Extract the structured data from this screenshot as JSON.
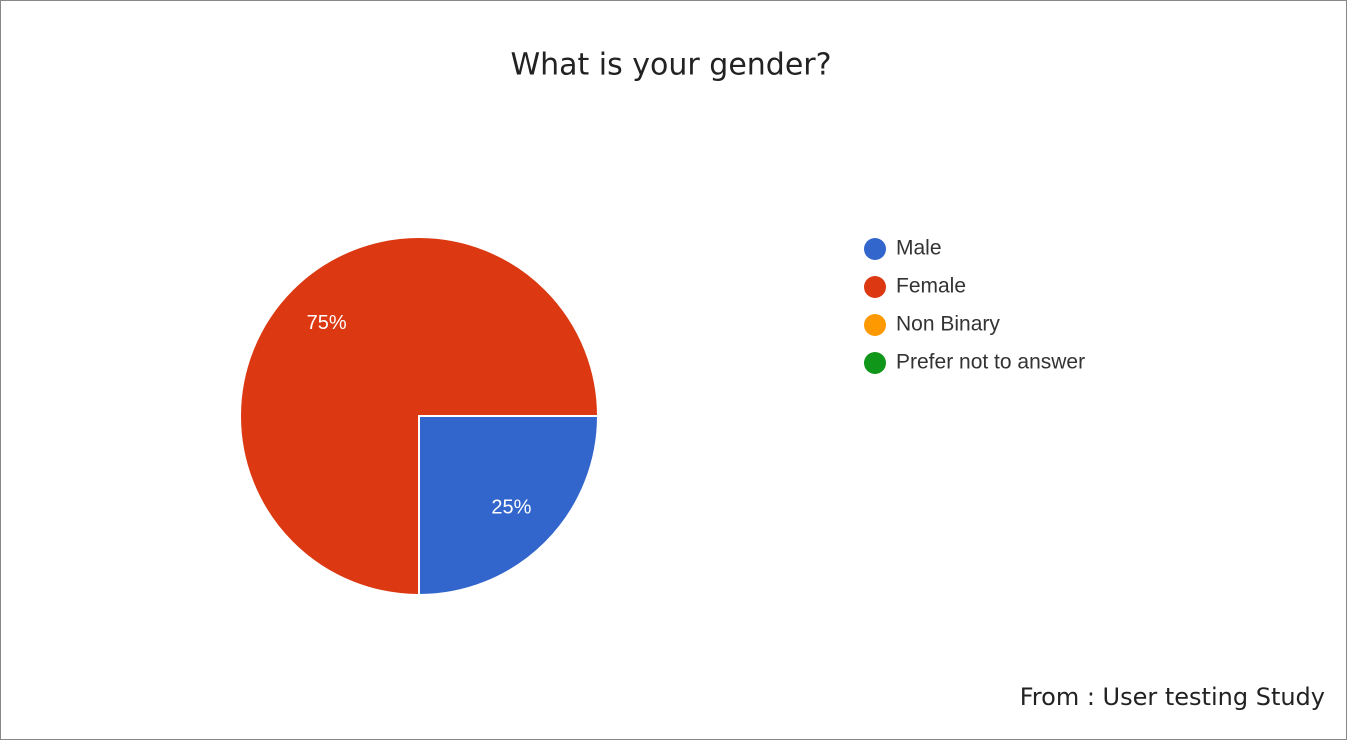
{
  "chart_data": {
    "type": "pie",
    "title": "What is your gender?",
    "categories": [
      "Male",
      "Female",
      "Non Binary",
      "Prefer not to answer"
    ],
    "values": [
      25,
      75,
      0,
      0
    ],
    "value_labels": [
      "25%",
      "75%",
      null,
      null
    ],
    "colors": [
      "#3366cc",
      "#dc3912",
      "#ff9900",
      "#109618"
    ],
    "start_angle": 90,
    "legend": "right",
    "source": "From : User testing Study"
  }
}
